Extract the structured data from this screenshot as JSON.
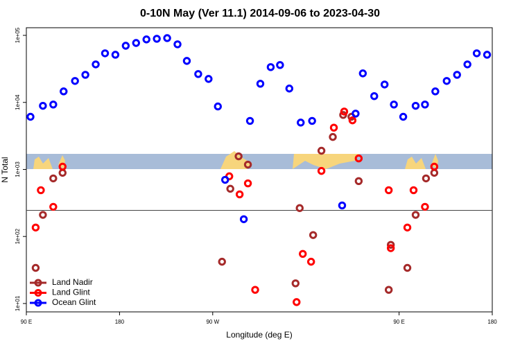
{
  "chart_data": {
    "type": "scatter",
    "title": "0-10N May (Ver 11.1)   2014-09-06 to 2023-04-30",
    "x_label": "Longitude (deg E)",
    "y_label": "N Total",
    "xlim": [
      90,
      540
    ],
    "ylim": [
      7.5,
      130000
    ],
    "log_y": true,
    "xticks": [
      {
        "value": 90,
        "label": "90 E"
      },
      {
        "value": 180,
        "label": "180"
      },
      {
        "value": 270,
        "label": "90 W"
      },
      {
        "value": 450,
        "label": "90 E"
      },
      {
        "value": 540,
        "label": "180"
      }
    ],
    "yticks": [
      {
        "value": 10,
        "label": "1e+01"
      },
      {
        "value": 100,
        "label": "1e+02"
      },
      {
        "value": 1000,
        "label": "1e+03"
      },
      {
        "value": 10000,
        "label": "1e+04"
      },
      {
        "value": 100000,
        "label": "1e+05"
      }
    ],
    "hline": 245,
    "legend": "bottom-left",
    "series": [
      {
        "name": "Land Nadir",
        "color": "#a52a2a",
        "x": [
          99,
          106,
          116,
          125,
          279,
          287,
          295,
          304,
          350,
          354,
          367,
          375,
          386,
          396,
          404,
          411,
          440,
          442,
          458,
          466,
          476,
          484
        ],
        "values": [
          34,
          210,
          735,
          890,
          42,
          515,
          1570,
          1180,
          20,
          265,
          105,
          1900,
          3050,
          6500,
          6100,
          670,
          16,
          75,
          34,
          210,
          735,
          890
        ]
      },
      {
        "name": "Land Glint",
        "color": "#ff0000",
        "x": [
          99,
          104,
          116,
          125,
          286,
          296,
          304,
          311,
          351,
          357,
          365,
          375,
          387,
          397,
          405,
          411,
          440,
          442,
          458,
          464,
          475,
          484
        ],
        "values": [
          136,
          490,
          277,
          1100,
          790,
          425,
          620,
          16,
          10.5,
          55,
          42,
          950,
          4200,
          7300,
          5400,
          1460,
          490,
          67,
          136,
          490,
          277,
          1100
        ]
      },
      {
        "name": "Ocean Glint",
        "color": "#0000ff",
        "x": [
          94,
          106,
          116,
          126,
          137,
          147,
          157,
          166,
          176,
          186,
          196,
          206,
          216,
          226,
          236,
          245,
          256,
          266,
          275,
          282,
          300,
          306,
          316,
          326,
          335,
          344,
          355,
          366,
          395,
          408,
          415,
          426,
          436,
          445,
          454,
          466,
          475,
          485,
          496,
          506,
          516,
          525,
          535
        ],
        "values": [
          6100,
          8900,
          9300,
          14600,
          20900,
          25800,
          36900,
          54000,
          51400,
          70000,
          77000,
          87000,
          89000,
          91000,
          73500,
          41600,
          26500,
          22400,
          8700,
          700,
          181,
          5300,
          19000,
          33600,
          36100,
          16100,
          5000,
          5300,
          290,
          6800,
          27100,
          12400,
          18500,
          9300,
          6100,
          8900,
          9300,
          14600,
          20900,
          25800,
          36900,
          54000,
          51400
        ]
      }
    ]
  }
}
